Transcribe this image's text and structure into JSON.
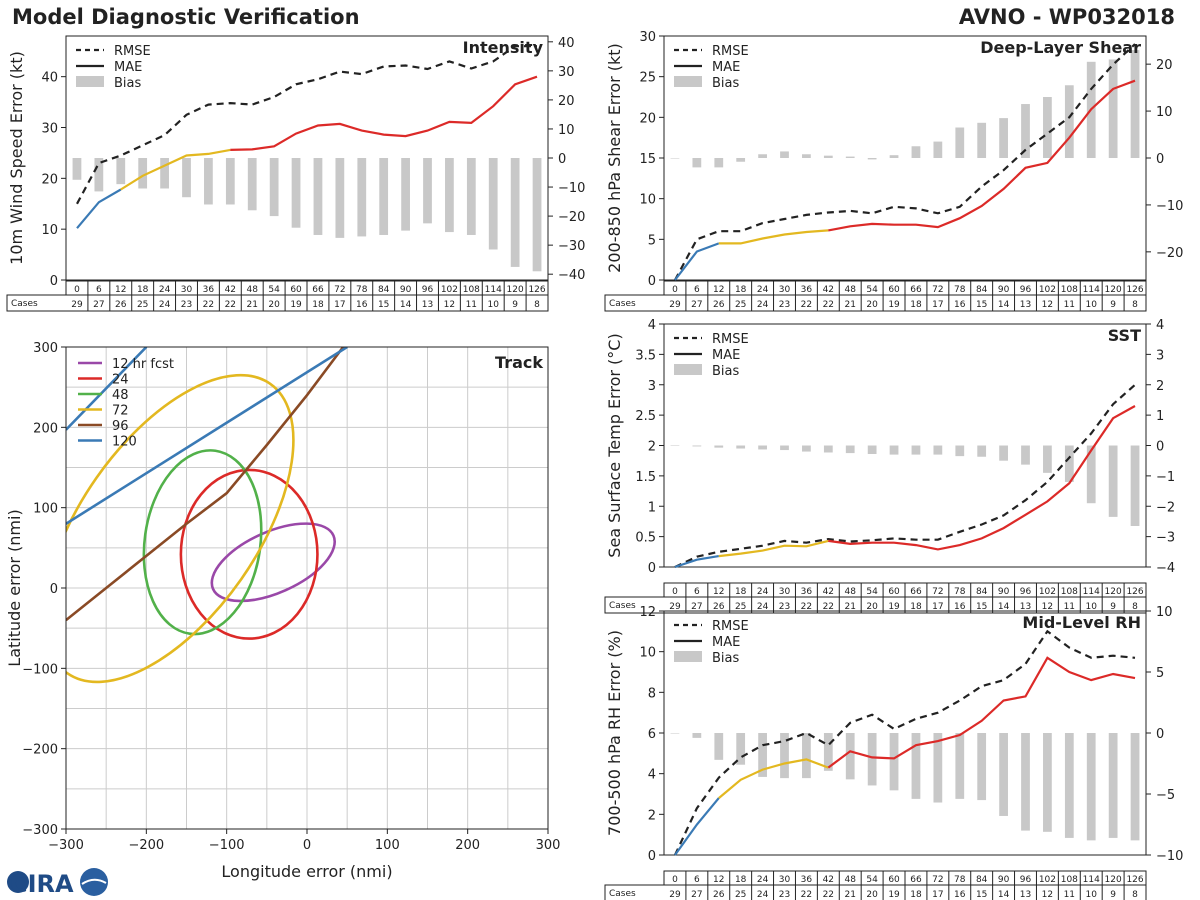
{
  "header": {
    "title": "Model Diagnostic Verification",
    "storm": "AVNO - WP032018"
  },
  "logo_text": "CIRA",
  "colors": {
    "rmse": "#222222",
    "blue": "#3a7ab5",
    "yellow": "#e3b820",
    "red": "#dc2a28",
    "bias": "#c8c8c8",
    "purple": "#9a48a8",
    "green": "#52b14a",
    "brown": "#8a4a25",
    "grid": "#cccccc"
  },
  "legend": {
    "rmse": "RMSE",
    "mae": "MAE",
    "bias": "Bias"
  },
  "cases_label": "Cases",
  "hours": [
    0,
    6,
    12,
    18,
    24,
    30,
    36,
    42,
    48,
    54,
    60,
    66,
    72,
    78,
    84,
    90,
    96,
    102,
    108,
    114,
    120,
    126
  ],
  "cases": [
    29,
    27,
    26,
    25,
    24,
    23,
    22,
    22,
    21,
    20,
    19,
    18,
    17,
    16,
    15,
    14,
    13,
    12,
    11,
    10,
    9,
    8
  ],
  "chart_data": [
    {
      "type": "line",
      "name": "intensity",
      "title": "Intensity",
      "ylabel": "10m Wind Speed Error (kt)",
      "ylim": [
        0,
        48
      ],
      "yticks": [
        0,
        10,
        20,
        30,
        40
      ],
      "y2lim": [
        -42,
        42
      ],
      "y2ticks": [
        -40,
        -30,
        -20,
        -10,
        0,
        10,
        20,
        30,
        40
      ],
      "series": [
        {
          "name": "RMSE",
          "values": [
            15,
            23,
            24.5,
            26.5,
            28.5,
            32.5,
            34.5,
            34.8,
            34.5,
            36,
            38.5,
            39.5,
            41,
            40.5,
            42,
            42.2,
            41.5,
            43,
            41.6,
            43,
            46,
            46
          ]
        },
        {
          "name": "MAE",
          "values": [
            10.2,
            15.3,
            17.8,
            20.5,
            22.5,
            24.5,
            24.8,
            25.6,
            25.7,
            26.3,
            28.8,
            30.4,
            30.7,
            29.4,
            28.6,
            28.3,
            29.4,
            31.1,
            30.9,
            34.2,
            38.5,
            40
          ]
        },
        {
          "name": "Bias",
          "values": [
            -7.5,
            -11.5,
            -9,
            -10.5,
            -10.5,
            -13.5,
            -16,
            -16,
            -18,
            -20,
            -24,
            -26.5,
            -27.5,
            -27,
            -26.5,
            -25,
            -22.5,
            -25.5,
            -26.5,
            -31.5,
            -37.5,
            -39
          ]
        }
      ]
    },
    {
      "type": "line",
      "name": "shear",
      "title": "Deep-Layer Shear",
      "ylabel": "200-850 hPa Shear Error (kt)",
      "ylim": [
        0,
        30
      ],
      "yticks": [
        0,
        5,
        10,
        15,
        20,
        25,
        30
      ],
      "y2lim": [
        -26,
        26
      ],
      "y2ticks": [
        -20,
        -10,
        0,
        10,
        20
      ],
      "series": [
        {
          "name": "RMSE",
          "values": [
            0,
            5,
            6,
            6,
            7,
            7.5,
            8,
            8.3,
            8.5,
            8.2,
            9,
            8.8,
            8.2,
            9,
            11.5,
            13.5,
            16,
            18,
            20,
            23.5,
            26.5,
            29
          ]
        },
        {
          "name": "MAE",
          "values": [
            0,
            3.5,
            4.5,
            4.5,
            5.1,
            5.6,
            5.9,
            6.1,
            6.6,
            6.9,
            6.8,
            6.8,
            6.5,
            7.6,
            9.1,
            11.2,
            13.8,
            14.4,
            17.5,
            21,
            23.5,
            24.5
          ]
        },
        {
          "name": "Bias",
          "values": [
            0,
            -2,
            -2,
            -0.8,
            0.8,
            1.4,
            0.8,
            0.5,
            0.3,
            -0.3,
            0.6,
            2.5,
            3.5,
            6.5,
            7.5,
            8.5,
            11.5,
            13,
            15.5,
            20.5,
            21,
            23
          ]
        }
      ]
    },
    {
      "type": "line",
      "name": "sst",
      "title": "SST",
      "ylabel": "Sea Surface Temp Error (°C)",
      "ylim": [
        0,
        4
      ],
      "yticks": [
        0,
        0.5,
        1,
        1.5,
        2,
        2.5,
        3,
        3.5,
        4
      ],
      "y2lim": [
        -4,
        4
      ],
      "y2ticks": [
        -4,
        -3,
        -2,
        -1,
        0,
        1,
        2,
        3,
        4
      ],
      "series": [
        {
          "name": "RMSE",
          "values": [
            0,
            0.17,
            0.25,
            0.3,
            0.35,
            0.43,
            0.4,
            0.46,
            0.42,
            0.44,
            0.47,
            0.45,
            0.45,
            0.58,
            0.7,
            0.85,
            1.1,
            1.4,
            1.8,
            2.2,
            2.68,
            3
          ]
        },
        {
          "name": "MAE",
          "values": [
            0,
            0.12,
            0.18,
            0.22,
            0.27,
            0.35,
            0.34,
            0.43,
            0.38,
            0.4,
            0.4,
            0.36,
            0.29,
            0.36,
            0.47,
            0.64,
            0.86,
            1.08,
            1.38,
            1.92,
            2.45,
            2.65
          ]
        },
        {
          "name": "Bias",
          "values": [
            0,
            -0.03,
            -0.07,
            -0.1,
            -0.13,
            -0.15,
            -0.2,
            -0.23,
            -0.25,
            -0.28,
            -0.3,
            -0.3,
            -0.3,
            -0.35,
            -0.37,
            -0.5,
            -0.63,
            -0.9,
            -1.2,
            -1.9,
            -2.35,
            -2.65
          ]
        }
      ]
    },
    {
      "type": "line",
      "name": "rh",
      "title": "Mid-Level RH",
      "ylabel": "700-500 hPa RH Error (%)",
      "ylim": [
        0,
        12
      ],
      "yticks": [
        0,
        2,
        4,
        6,
        8,
        10,
        12
      ],
      "y2lim": [
        -10,
        10
      ],
      "y2ticks": [
        -10,
        -5,
        0,
        5,
        10
      ],
      "series": [
        {
          "name": "RMSE",
          "values": [
            0,
            2.3,
            3.8,
            4.8,
            5.4,
            5.6,
            6,
            5.4,
            6.5,
            6.9,
            6.2,
            6.7,
            7,
            7.6,
            8.3,
            8.6,
            9.4,
            11,
            10.2,
            9.7,
            9.8,
            9.7
          ]
        },
        {
          "name": "MAE",
          "values": [
            0,
            1.5,
            2.8,
            3.7,
            4.2,
            4.5,
            4.7,
            4.3,
            5.1,
            4.8,
            4.75,
            5.4,
            5.6,
            5.9,
            6.6,
            7.6,
            7.8,
            9.7,
            9,
            8.6,
            8.9,
            8.7
          ]
        },
        {
          "name": "Bias",
          "values": [
            0,
            -0.4,
            -2.2,
            -2.6,
            -3.6,
            -3.7,
            -3.7,
            -3.1,
            -3.8,
            -4.3,
            -4.7,
            -5.4,
            -5.7,
            -5.4,
            -5.5,
            -6.8,
            -8,
            -8.1,
            -8.6,
            -8.8,
            -8.6,
            -8.8
          ]
        }
      ]
    },
    {
      "type": "track",
      "name": "track",
      "title": "Track",
      "xlabel": "Longitude error (nmi)",
      "ylabel": "Latitude error (nmi)",
      "xlim": [
        -300,
        300
      ],
      "ylim": [
        -300,
        300
      ],
      "xticks": [
        -300,
        -200,
        -100,
        0,
        100,
        200,
        300
      ],
      "yticks": [
        -300,
        -200,
        -100,
        0,
        100,
        200,
        300
      ],
      "series": [
        {
          "name": "12 hr fcst",
          "ellipse": {
            "cx": -42,
            "cy": 32,
            "rx": 82,
            "ry": 38,
            "angle": -24
          }
        },
        {
          "name": "24",
          "ellipse": {
            "cx": -72,
            "cy": 42,
            "rx": 85,
            "ry": 105,
            "angle": 0
          }
        },
        {
          "name": "48",
          "ellipse": {
            "cx": -130,
            "cy": 57,
            "rx": 72,
            "ry": 115,
            "angle": 8
          }
        },
        {
          "name": "72",
          "ellipse": {
            "cx": -172,
            "cy": 74,
            "rx": 110,
            "ry": 220,
            "angle": 35
          }
        },
        {
          "name": "96",
          "curve": [
            [
              -300,
              -40
            ],
            [
              -250,
              0
            ],
            [
              -150,
              80
            ],
            [
              -100,
              118
            ],
            [
              -50,
              178
            ],
            [
              0,
              240
            ],
            [
              45,
              300
            ]
          ]
        },
        {
          "name": "120",
          "curve": [
            [
              -300,
              197
            ],
            [
              -200,
              300
            ]
          ],
          "curve2": [
            [
              -300,
              80
            ],
            [
              50,
              300
            ]
          ]
        }
      ]
    }
  ]
}
